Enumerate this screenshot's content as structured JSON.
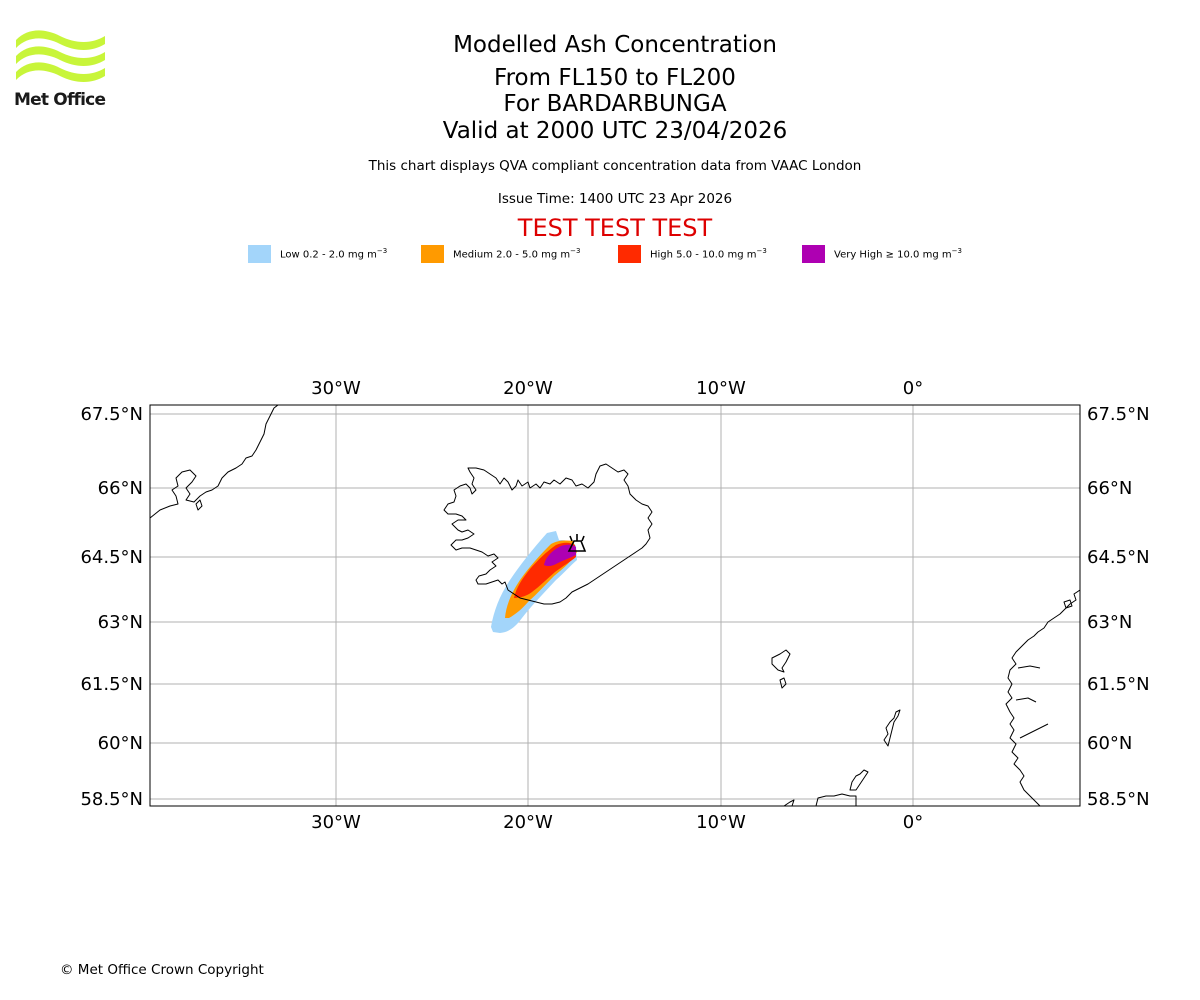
{
  "logo": {
    "name": "Met Office",
    "color": "#c8f53a"
  },
  "header": {
    "title": "Modelled Ash Concentration",
    "levels": "From FL150 to FL200",
    "volcano": "For BARDARBUNGA",
    "valid": "Valid at 2000 UTC 23/04/2026",
    "description": "This chart displays QVA compliant concentration data from VAAC London",
    "issue_time": "Issue Time: 1400 UTC 23 Apr 2026",
    "test_banner": "TEST TEST TEST"
  },
  "legend": [
    {
      "name": "legend-low",
      "label": "Low 0.2 - 2.0 mg m",
      "unit_exp": "−3",
      "color": "#a3d5fa"
    },
    {
      "name": "legend-medium",
      "label": "Medium 2.0 - 5.0 mg m",
      "unit_exp": "−3",
      "color": "#ff9a00"
    },
    {
      "name": "legend-high",
      "label": "High 5.0 - 10.0 mg m",
      "unit_exp": "−3",
      "color": "#ff2a00"
    },
    {
      "name": "legend-very-high",
      "label": "Very High  ≥  10.0 mg m",
      "unit_exp": "−3",
      "color": "#ae00b2"
    }
  ],
  "map": {
    "lon_range": [
      -39.6,
      8.6
    ],
    "lat_range": [
      58.4,
      67.9
    ],
    "lon_ticks": [
      "30°W",
      "20°W",
      "10°W",
      "0°"
    ],
    "lat_ticks": [
      "67.5°N",
      "66°N",
      "64.5°N",
      "63°N",
      "61.5°N",
      "60°N",
      "58.5°N"
    ],
    "volcano_marker": "Bardarbunga"
  },
  "footer": {
    "copyright": "© Met Office Crown Copyright"
  }
}
